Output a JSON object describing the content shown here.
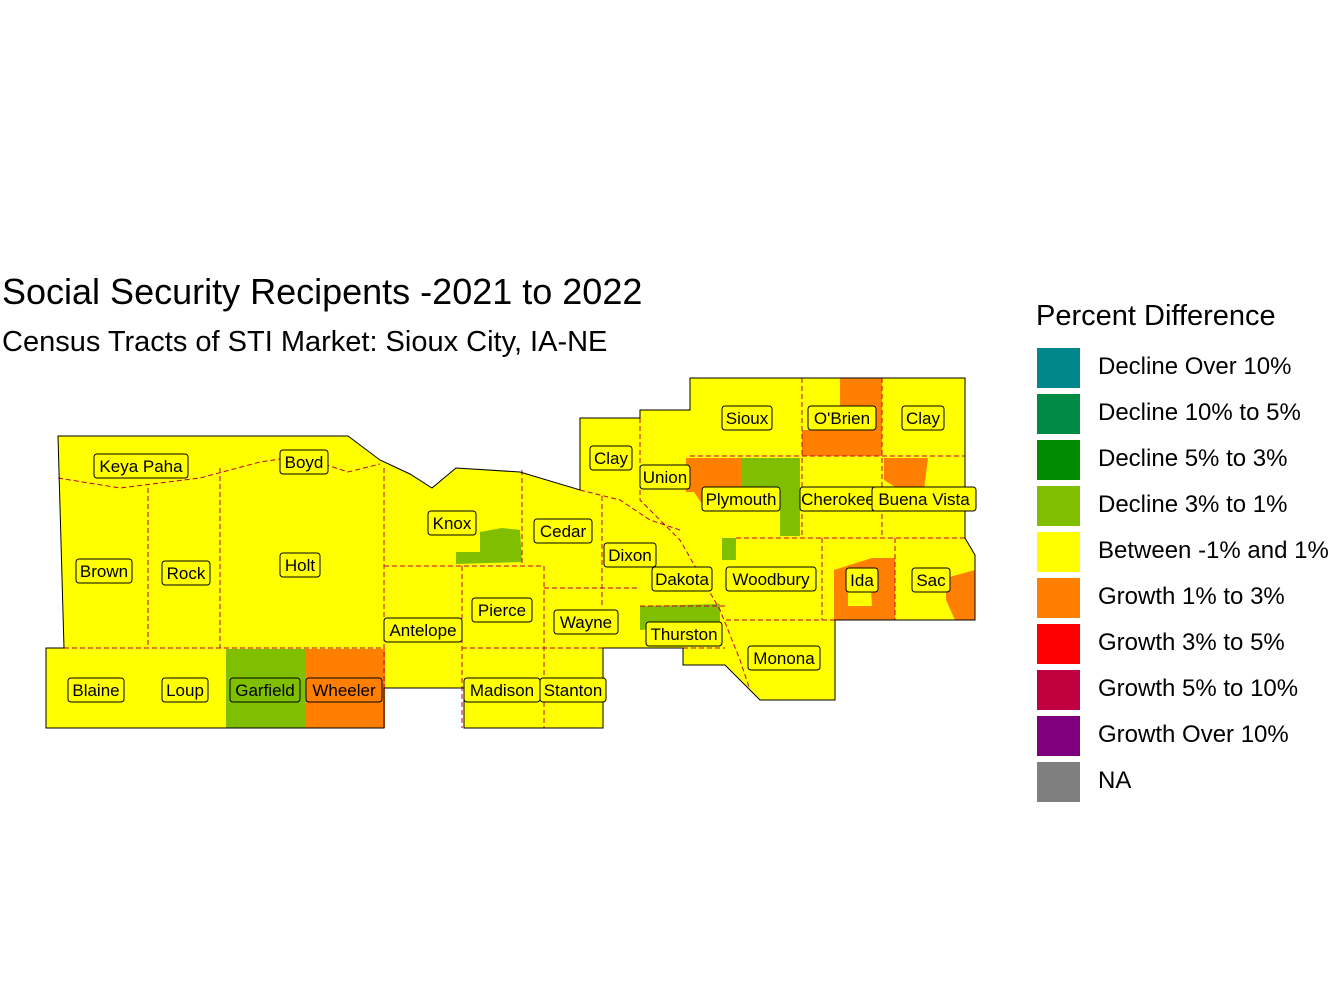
{
  "title": "Social Security Recipents -2021 to 2022",
  "subtitle": "Census Tracts of STI Market: Sioux City, IA-NE",
  "legend": {
    "title": "Percent Difference",
    "items": [
      {
        "label": "Decline Over 10%",
        "color": "#00868B"
      },
      {
        "label": "Decline 10% to 5%",
        "color": "#008B45"
      },
      {
        "label": "Decline 5% to 3%",
        "color": "#008B00"
      },
      {
        "label": "Decline 3% to 1%",
        "color": "#7FBF00"
      },
      {
        "label": "Between -1% and 1%",
        "color": "#FFFF00"
      },
      {
        "label": "Growth 1% to 3%",
        "color": "#FF7F00"
      },
      {
        "label": "Growth 3% to 5%",
        "color": "#FF0000"
      },
      {
        "label": "Growth 5% to 10%",
        "color": "#C0003F"
      },
      {
        "label": "Growth Over 10%",
        "color": "#7F007F"
      },
      {
        "label": "NA",
        "color": "#7F7F7F"
      }
    ]
  },
  "counties": {
    "keya_paha": "Keya Paha",
    "boyd": "Boyd",
    "brown": "Brown",
    "rock": "Rock",
    "holt": "Holt",
    "knox": "Knox",
    "cedar": "Cedar",
    "antelope": "Antelope",
    "pierce": "Pierce",
    "wayne": "Wayne",
    "dixon": "Dixon",
    "dakota": "Dakota",
    "thurston": "Thurston",
    "blaine": "Blaine",
    "loup": "Loup",
    "garfield": "Garfield",
    "wheeler": "Wheeler",
    "madison": "Madison",
    "stanton": "Stanton",
    "clay_sd": "Clay",
    "union": "Union",
    "sioux": "Sioux",
    "obrien": "O'Brien",
    "clay_ia": "Clay",
    "plymouth": "Plymouth",
    "cherokee": "Cherokee",
    "buena_vista": "Buena Vista",
    "woodbury": "Woodbury",
    "ida": "Ida",
    "sac": "Sac",
    "monona": "Monona"
  }
}
